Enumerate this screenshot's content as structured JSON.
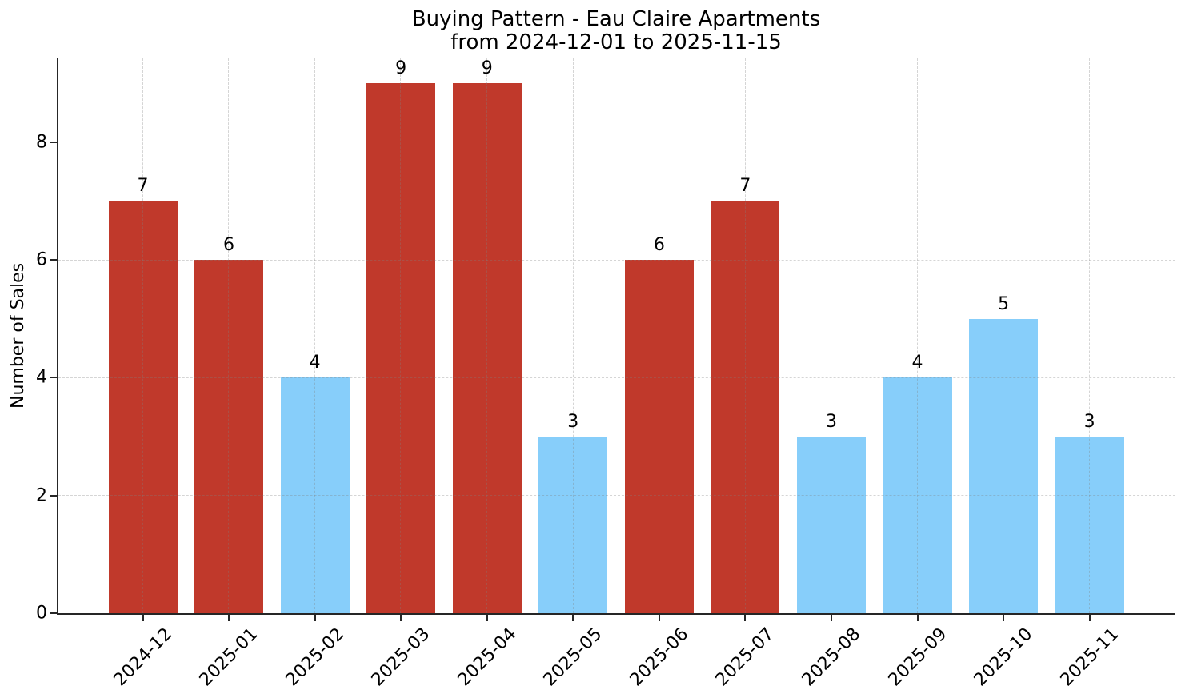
{
  "chart_data": {
    "type": "bar",
    "title_line1": "Buying Pattern - Eau Claire Apartments",
    "title_line2": "from 2024-12-01 to 2025-11-15",
    "ylabel": "Number of Sales",
    "xlabel": "",
    "categories": [
      "2024-12",
      "2025-01",
      "2025-02",
      "2025-03",
      "2025-04",
      "2025-05",
      "2025-06",
      "2025-07",
      "2025-08",
      "2025-09",
      "2025-10",
      "2025-11"
    ],
    "values": [
      7,
      6,
      4,
      9,
      9,
      3,
      6,
      7,
      3,
      4,
      5,
      3
    ],
    "bar_colors": [
      "#c0392b",
      "#c0392b",
      "#87cefa",
      "#c0392b",
      "#c0392b",
      "#87cefa",
      "#c0392b",
      "#c0392b",
      "#87cefa",
      "#87cefa",
      "#87cefa",
      "#87cefa"
    ],
    "palette": {
      "red_bar": "#c0392b",
      "blue_bar": "#87cefa",
      "axis": "#262626",
      "grid": "rgba(128,128,128,0.33)"
    },
    "yticks": [
      0,
      2,
      4,
      6,
      8
    ],
    "ylim": [
      0,
      9.42
    ],
    "xtick_rotation": 45,
    "grid": true,
    "legend": "none"
  }
}
